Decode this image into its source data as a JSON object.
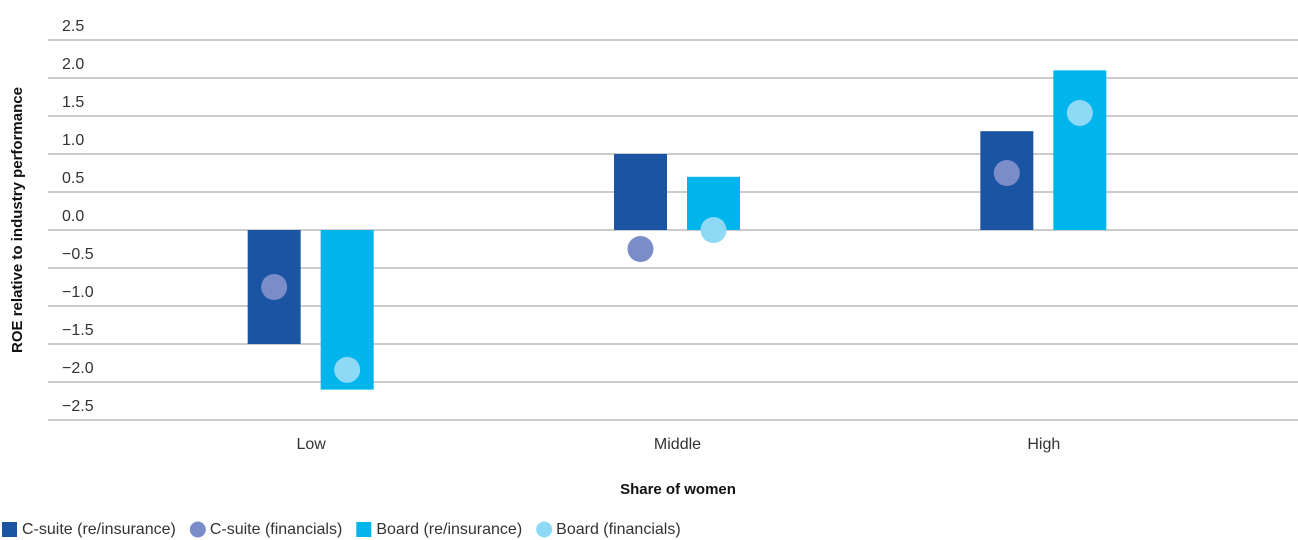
{
  "chart_data": {
    "type": "bar",
    "y_label": "ROE relative to industry performance",
    "x_label": "Share of women",
    "categories": [
      "Low",
      "Middle",
      "High"
    ],
    "series": [
      {
        "name": "C-suite (re/insurance)",
        "kind": "bar",
        "color": "#1c54a4",
        "values": [
          -1.5,
          1.0,
          1.3
        ]
      },
      {
        "name": "C-suite (financials)",
        "kind": "dot",
        "color": "#7b8dc9",
        "values": [
          -0.75,
          -0.25,
          0.75
        ]
      },
      {
        "name": "Board (re/insurance)",
        "kind": "bar",
        "color": "#00b4ec",
        "values": [
          -2.1,
          0.7,
          2.1
        ]
      },
      {
        "name": "Board (financials)",
        "kind": "dot",
        "color": "#8ed9f6",
        "values": [
          -1.84,
          0.0,
          1.54
        ]
      }
    ],
    "ylim": [
      -2.5,
      2.5
    ],
    "yticks": [
      2.5,
      {
        "value": 2,
        "label": "2.0"
      },
      1.5,
      {
        "value": 1,
        "label": "1.0"
      },
      0.5,
      {
        "value": 0,
        "label": "0.0"
      },
      {
        "value": -0.5,
        "label": "−0.5"
      },
      {
        "value": -1,
        "label": "−1.0"
      },
      {
        "value": -1.5,
        "label": "−1.5"
      },
      {
        "value": -2,
        "label": "−2.0"
      },
      {
        "value": -2.5,
        "label": "−2.5"
      }
    ],
    "grid": true
  }
}
